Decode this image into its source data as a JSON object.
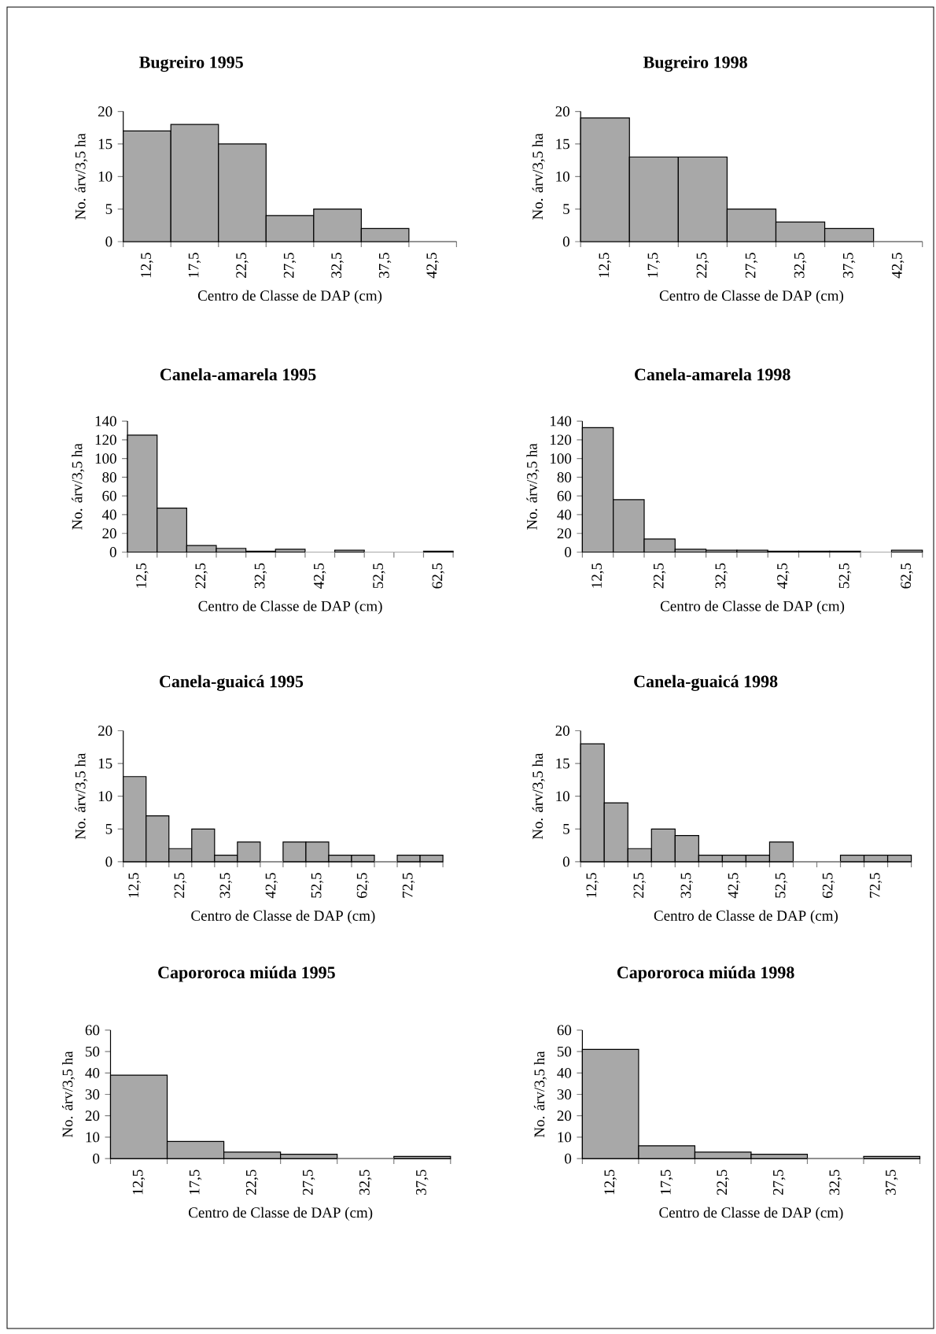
{
  "chart_data": [
    {
      "type": "bar",
      "title": "Bugreiro 1995",
      "xlabel": "Centro de Classe de DAP (cm)",
      "ylabel": "No. árv/3,5 ha",
      "categories": [
        "12,5",
        "17,5",
        "22,5",
        "27,5",
        "32,5",
        "37,5",
        "42,5"
      ],
      "values": [
        17,
        18,
        15,
        4,
        5,
        2,
        0
      ],
      "color": "#a8a8a8",
      "ylim": [
        0,
        20
      ],
      "yticks": [
        0,
        5,
        10,
        15,
        20
      ]
    },
    {
      "type": "bar",
      "title": "Bugreiro 1998",
      "xlabel": "Centro de Classe de DAP (cm)",
      "ylabel": "No. árv/3,5 ha",
      "categories": [
        "12,5",
        "17,5",
        "22,5",
        "27,5",
        "32,5",
        "37,5",
        "42,5"
      ],
      "values": [
        19,
        13,
        13,
        5,
        3,
        2,
        0
      ],
      "color": "#a8a8a8",
      "ylim": [
        0,
        20
      ],
      "yticks": [
        0,
        5,
        10,
        15,
        20
      ]
    },
    {
      "type": "bar",
      "title": "Canela-amarela 1995",
      "xlabel": "Centro de Classe de DAP (cm)",
      "ylabel": "No. árv/3,5 ha",
      "categories": [
        "12,5",
        null,
        "22,5",
        null,
        "32,5",
        null,
        "42,5",
        null,
        "52,5",
        null,
        "62,5"
      ],
      "values": [
        125,
        47,
        7,
        4,
        1,
        3,
        0,
        2,
        0,
        0,
        1
      ],
      "color": "#a8a8a8",
      "ylim": [
        0,
        140
      ],
      "yticks": [
        0,
        20,
        40,
        60,
        80,
        100,
        120,
        140
      ]
    },
    {
      "type": "bar",
      "title": "Canela-amarela 1998",
      "xlabel": "Centro de Classe de DAP (cm)",
      "ylabel": "No. árv/3,5 ha",
      "categories": [
        "12,5",
        null,
        "22,5",
        null,
        "32,5",
        null,
        "42,5",
        null,
        "52,5",
        null,
        "62,5"
      ],
      "values": [
        133,
        56,
        14,
        3,
        2,
        2,
        1,
        1,
        1,
        0,
        2
      ],
      "color": "#a8a8a8",
      "ylim": [
        0,
        140
      ],
      "yticks": [
        0,
        20,
        40,
        60,
        80,
        100,
        120,
        140
      ]
    },
    {
      "type": "bar",
      "title": "Canela-guaicá  1995",
      "xlabel": "Centro de Classe de DAP (cm)",
      "ylabel": "No. árv/3,5 ha",
      "categories": [
        "12,5",
        null,
        "22,5",
        null,
        "32,5",
        null,
        "42,5",
        null,
        "52,5",
        null,
        "62,5",
        null,
        "72,5",
        null
      ],
      "values": [
        13,
        7,
        2,
        5,
        1,
        3,
        0,
        3,
        3,
        1,
        1,
        0,
        1,
        1
      ],
      "color": "#a8a8a8",
      "ylim": [
        0,
        20
      ],
      "yticks": [
        0,
        5,
        10,
        15,
        20
      ]
    },
    {
      "type": "bar",
      "title": "Canela-guaicá  1998",
      "xlabel": "Centro de Classe de DAP (cm)",
      "ylabel": "No. árv/3,5 ha",
      "categories": [
        "12,5",
        null,
        "22,5",
        null,
        "32,5",
        null,
        "42,5",
        null,
        "52,5",
        null,
        "62,5",
        null,
        "72,5",
        null
      ],
      "values": [
        18,
        9,
        2,
        5,
        4,
        1,
        1,
        1,
        3,
        0,
        0,
        1,
        1,
        1
      ],
      "color": "#a8a8a8",
      "ylim": [
        0,
        20
      ],
      "yticks": [
        0,
        5,
        10,
        15,
        20
      ]
    },
    {
      "type": "bar",
      "title": "Capororoca miúda  1995",
      "xlabel": "Centro de Classe de DAP (cm)",
      "ylabel": "No. árv/3,5 ha",
      "categories": [
        "12,5",
        "17,5",
        "22,5",
        "27,5",
        "32,5",
        "37,5"
      ],
      "values": [
        39,
        8,
        3,
        2,
        0,
        1
      ],
      "color": "#a8a8a8",
      "ylim": [
        0,
        60
      ],
      "yticks": [
        0,
        10,
        20,
        30,
        40,
        50,
        60
      ]
    },
    {
      "type": "bar",
      "title": "Capororoca miúda  1998",
      "xlabel": "Centro de Classe de DAP (cm)",
      "ylabel": "No. árv/3,5 ha",
      "categories": [
        "12,5",
        "17,5",
        "22,5",
        "27,5",
        "32,5",
        "37,5"
      ],
      "values": [
        51,
        6,
        3,
        2,
        0,
        1
      ],
      "color": "#a8a8a8",
      "ylim": [
        0,
        60
      ],
      "yticks": [
        0,
        10,
        20,
        30,
        40,
        50,
        60
      ]
    }
  ]
}
